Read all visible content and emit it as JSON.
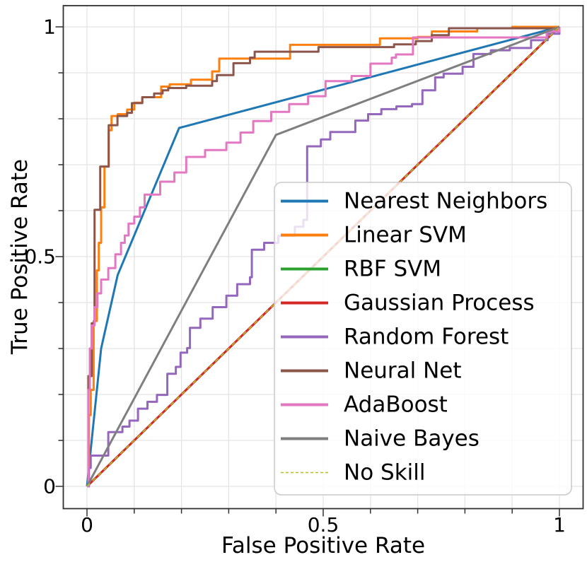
{
  "figure": {
    "background": "#ffffff"
  },
  "chart_data": {
    "type": "line",
    "title": "",
    "xlabel": "False Positive Rate",
    "ylabel": "True Positive Rate",
    "xlim": [
      -0.05,
      1.05
    ],
    "ylim": [
      -0.05,
      1.05
    ],
    "xticks": {
      "values": [
        0,
        0.5,
        1
      ],
      "labels": [
        "0",
        "0.5",
        "1"
      ]
    },
    "yticks": {
      "values": [
        0,
        0.5,
        1
      ],
      "labels": [
        "0",
        "0.5",
        "1"
      ]
    },
    "grid": {
      "on": true,
      "interval": 0.1,
      "color": "#e4e4e4"
    },
    "axis_color": "#2f2f2f",
    "legend": {
      "position": "lower right",
      "frame_fill": "#ffffff",
      "frame_opacity": 0.8,
      "frame_border": "#c9c9c9"
    },
    "series": [
      {
        "name": "Nearest Neighbors",
        "color": "#1f77b4",
        "style": "solid",
        "width": 3,
        "points": [
          [
            0,
            0
          ],
          [
            0.03,
            0.3
          ],
          [
            0.065,
            0.46
          ],
          [
            0.195,
            0.78
          ],
          [
            1,
            1
          ]
        ]
      },
      {
        "name": "Linear SVM",
        "color": "#ff7f0e",
        "style": "solid",
        "width": 3,
        "points": [
          [
            0,
            0
          ],
          [
            0.004,
            0
          ],
          [
            0.004,
            0.155
          ],
          [
            0.008,
            0.155
          ],
          [
            0.008,
            0.21
          ],
          [
            0.014,
            0.21
          ],
          [
            0.014,
            0.36
          ],
          [
            0.021,
            0.36
          ],
          [
            0.021,
            0.47
          ],
          [
            0.025,
            0.47
          ],
          [
            0.025,
            0.53
          ],
          [
            0.03,
            0.53
          ],
          [
            0.03,
            0.607
          ],
          [
            0.037,
            0.607
          ],
          [
            0.037,
            0.696
          ],
          [
            0.046,
            0.696
          ],
          [
            0.046,
            0.775
          ],
          [
            0.052,
            0.775
          ],
          [
            0.052,
            0.806
          ],
          [
            0.065,
            0.806
          ],
          [
            0.065,
            0.81
          ],
          [
            0.085,
            0.81
          ],
          [
            0.085,
            0.82
          ],
          [
            0.1,
            0.82
          ],
          [
            0.1,
            0.835
          ],
          [
            0.117,
            0.835
          ],
          [
            0.117,
            0.847
          ],
          [
            0.157,
            0.847
          ],
          [
            0.157,
            0.87
          ],
          [
            0.175,
            0.87
          ],
          [
            0.175,
            0.875
          ],
          [
            0.22,
            0.875
          ],
          [
            0.22,
            0.885
          ],
          [
            0.265,
            0.885
          ],
          [
            0.265,
            0.903
          ],
          [
            0.28,
            0.903
          ],
          [
            0.28,
            0.931
          ],
          [
            0.43,
            0.931
          ],
          [
            0.43,
            0.961
          ],
          [
            0.62,
            0.961
          ],
          [
            0.62,
            0.975
          ],
          [
            0.7,
            0.975
          ],
          [
            0.7,
            0.978
          ],
          [
            0.73,
            0.978
          ],
          [
            0.73,
            0.99
          ],
          [
            0.826,
            0.99
          ],
          [
            0.826,
            0.997
          ],
          [
            0.9,
            0.997
          ],
          [
            0.9,
            1
          ],
          [
            1,
            1
          ]
        ]
      },
      {
        "name": "RBF SVM",
        "color": "#2ca02c",
        "style": "solid",
        "width": 3,
        "points": [
          [
            0,
            0
          ],
          [
            1,
            1
          ]
        ]
      },
      {
        "name": "Gaussian Process",
        "color": "#d62728",
        "style": "solid",
        "width": 3,
        "points": [
          [
            0,
            0
          ],
          [
            1,
            1
          ]
        ]
      },
      {
        "name": "Random Forest",
        "color": "#9467bd",
        "style": "solid",
        "width": 3,
        "points": [
          [
            0,
            0
          ],
          [
            0.004,
            0
          ],
          [
            0.004,
            0.04
          ],
          [
            0.008,
            0.04
          ],
          [
            0.008,
            0.067
          ],
          [
            0.045,
            0.067
          ],
          [
            0.045,
            0.118
          ],
          [
            0.075,
            0.118
          ],
          [
            0.075,
            0.13
          ],
          [
            0.09,
            0.13
          ],
          [
            0.09,
            0.143
          ],
          [
            0.108,
            0.143
          ],
          [
            0.108,
            0.169
          ],
          [
            0.128,
            0.169
          ],
          [
            0.128,
            0.184
          ],
          [
            0.148,
            0.184
          ],
          [
            0.148,
            0.199
          ],
          [
            0.17,
            0.199
          ],
          [
            0.17,
            0.245
          ],
          [
            0.188,
            0.245
          ],
          [
            0.188,
            0.26
          ],
          [
            0.198,
            0.26
          ],
          [
            0.198,
            0.291
          ],
          [
            0.212,
            0.291
          ],
          [
            0.212,
            0.301
          ],
          [
            0.218,
            0.301
          ],
          [
            0.218,
            0.345
          ],
          [
            0.24,
            0.345
          ],
          [
            0.24,
            0.365
          ],
          [
            0.266,
            0.365
          ],
          [
            0.266,
            0.39
          ],
          [
            0.295,
            0.39
          ],
          [
            0.295,
            0.415
          ],
          [
            0.318,
            0.415
          ],
          [
            0.318,
            0.44
          ],
          [
            0.345,
            0.44
          ],
          [
            0.345,
            0.455
          ],
          [
            0.349,
            0.455
          ],
          [
            0.349,
            0.515
          ],
          [
            0.375,
            0.515
          ],
          [
            0.375,
            0.53
          ],
          [
            0.405,
            0.53
          ],
          [
            0.405,
            0.545
          ],
          [
            0.44,
            0.545
          ],
          [
            0.44,
            0.565
          ],
          [
            0.458,
            0.565
          ],
          [
            0.458,
            0.58
          ],
          [
            0.466,
            0.58
          ],
          [
            0.466,
            0.74
          ],
          [
            0.495,
            0.74
          ],
          [
            0.495,
            0.755
          ],
          [
            0.515,
            0.755
          ],
          [
            0.515,
            0.771
          ],
          [
            0.568,
            0.771
          ],
          [
            0.568,
            0.796
          ],
          [
            0.595,
            0.796
          ],
          [
            0.595,
            0.81
          ],
          [
            0.623,
            0.81
          ],
          [
            0.623,
            0.821
          ],
          [
            0.655,
            0.821
          ],
          [
            0.655,
            0.827
          ],
          [
            0.688,
            0.827
          ],
          [
            0.688,
            0.832
          ],
          [
            0.71,
            0.832
          ],
          [
            0.71,
            0.862
          ],
          [
            0.737,
            0.862
          ],
          [
            0.737,
            0.89
          ],
          [
            0.755,
            0.89
          ],
          [
            0.755,
            0.898
          ],
          [
            0.795,
            0.898
          ],
          [
            0.795,
            0.913
          ],
          [
            0.818,
            0.913
          ],
          [
            0.818,
            0.941
          ],
          [
            0.855,
            0.941
          ],
          [
            0.855,
            0.949
          ],
          [
            0.895,
            0.949
          ],
          [
            0.895,
            0.954
          ],
          [
            0.94,
            0.954
          ],
          [
            0.94,
            0.971
          ],
          [
            0.975,
            0.971
          ],
          [
            0.975,
            0.985
          ],
          [
            1,
            0.985
          ],
          [
            1,
            1
          ]
        ]
      },
      {
        "name": "Neural Net",
        "color": "#8c564b",
        "style": "solid",
        "width": 3,
        "points": [
          [
            0,
            0
          ],
          [
            0.003,
            0
          ],
          [
            0.003,
            0.24
          ],
          [
            0.01,
            0.24
          ],
          [
            0.01,
            0.355
          ],
          [
            0.016,
            0.355
          ],
          [
            0.016,
            0.602
          ],
          [
            0.028,
            0.602
          ],
          [
            0.028,
            0.696
          ],
          [
            0.046,
            0.696
          ],
          [
            0.046,
            0.786
          ],
          [
            0.0645,
            0.786
          ],
          [
            0.0645,
            0.806
          ],
          [
            0.085,
            0.806
          ],
          [
            0.085,
            0.813
          ],
          [
            0.095,
            0.813
          ],
          [
            0.095,
            0.834
          ],
          [
            0.117,
            0.834
          ],
          [
            0.117,
            0.847
          ],
          [
            0.142,
            0.847
          ],
          [
            0.142,
            0.855
          ],
          [
            0.16,
            0.855
          ],
          [
            0.16,
            0.862
          ],
          [
            0.172,
            0.862
          ],
          [
            0.172,
            0.867
          ],
          [
            0.21,
            0.867
          ],
          [
            0.21,
            0.872
          ],
          [
            0.265,
            0.872
          ],
          [
            0.265,
            0.882
          ],
          [
            0.275,
            0.882
          ],
          [
            0.275,
            0.895
          ],
          [
            0.31,
            0.895
          ],
          [
            0.31,
            0.921
          ],
          [
            0.345,
            0.921
          ],
          [
            0.345,
            0.933
          ],
          [
            0.355,
            0.933
          ],
          [
            0.355,
            0.946
          ],
          [
            0.49,
            0.946
          ],
          [
            0.49,
            0.956
          ],
          [
            0.65,
            0.956
          ],
          [
            0.65,
            0.962
          ],
          [
            0.696,
            0.962
          ],
          [
            0.696,
            0.969
          ],
          [
            0.73,
            0.969
          ],
          [
            0.73,
            0.982
          ],
          [
            0.766,
            0.982
          ],
          [
            0.766,
            0.997
          ],
          [
            1,
            0.997
          ],
          [
            1,
            1
          ]
        ]
      },
      {
        "name": "AdaBoost",
        "color": "#e377c2",
        "style": "solid",
        "width": 3,
        "points": [
          [
            0,
            0
          ],
          [
            0.003,
            0
          ],
          [
            0.003,
            0.21
          ],
          [
            0.006,
            0.21
          ],
          [
            0.006,
            0.3
          ],
          [
            0.01,
            0.3
          ],
          [
            0.01,
            0.35
          ],
          [
            0.016,
            0.35
          ],
          [
            0.016,
            0.39
          ],
          [
            0.022,
            0.39
          ],
          [
            0.022,
            0.42
          ],
          [
            0.03,
            0.42
          ],
          [
            0.03,
            0.45
          ],
          [
            0.045,
            0.45
          ],
          [
            0.045,
            0.475
          ],
          [
            0.06,
            0.475
          ],
          [
            0.06,
            0.505
          ],
          [
            0.072,
            0.505
          ],
          [
            0.072,
            0.53
          ],
          [
            0.08,
            0.53
          ],
          [
            0.08,
            0.546
          ],
          [
            0.088,
            0.546
          ],
          [
            0.088,
            0.572
          ],
          [
            0.1,
            0.572
          ],
          [
            0.1,
            0.587
          ],
          [
            0.112,
            0.587
          ],
          [
            0.112,
            0.607
          ],
          [
            0.122,
            0.607
          ],
          [
            0.122,
            0.635
          ],
          [
            0.155,
            0.635
          ],
          [
            0.155,
            0.663
          ],
          [
            0.185,
            0.663
          ],
          [
            0.185,
            0.683
          ],
          [
            0.21,
            0.683
          ],
          [
            0.21,
            0.717
          ],
          [
            0.25,
            0.717
          ],
          [
            0.25,
            0.732
          ],
          [
            0.295,
            0.732
          ],
          [
            0.295,
            0.748
          ],
          [
            0.325,
            0.748
          ],
          [
            0.325,
            0.77
          ],
          [
            0.352,
            0.77
          ],
          [
            0.352,
            0.795
          ],
          [
            0.39,
            0.795
          ],
          [
            0.39,
            0.815
          ],
          [
            0.428,
            0.815
          ],
          [
            0.428,
            0.832
          ],
          [
            0.468,
            0.832
          ],
          [
            0.468,
            0.849
          ],
          [
            0.505,
            0.849
          ],
          [
            0.505,
            0.882
          ],
          [
            0.56,
            0.882
          ],
          [
            0.56,
            0.893
          ],
          [
            0.6,
            0.893
          ],
          [
            0.6,
            0.92
          ],
          [
            0.645,
            0.92
          ],
          [
            0.645,
            0.933
          ],
          [
            0.654,
            0.933
          ],
          [
            0.654,
            0.94
          ],
          [
            0.69,
            0.94
          ],
          [
            0.69,
            0.977
          ],
          [
            0.973,
            0.977
          ],
          [
            0.973,
            0.99
          ],
          [
            1,
            0.99
          ],
          [
            1,
            1
          ]
        ]
      },
      {
        "name": "Naive Bayes",
        "color": "#7f7f7f",
        "style": "solid",
        "width": 3,
        "points": [
          [
            0,
            0
          ],
          [
            0.4,
            0.765
          ],
          [
            1,
            1
          ]
        ]
      },
      {
        "name": "No Skill",
        "color": "#bcbd22",
        "style": "dashed",
        "width": 1.6,
        "points": [
          [
            0,
            0
          ],
          [
            1,
            1
          ]
        ]
      }
    ]
  }
}
